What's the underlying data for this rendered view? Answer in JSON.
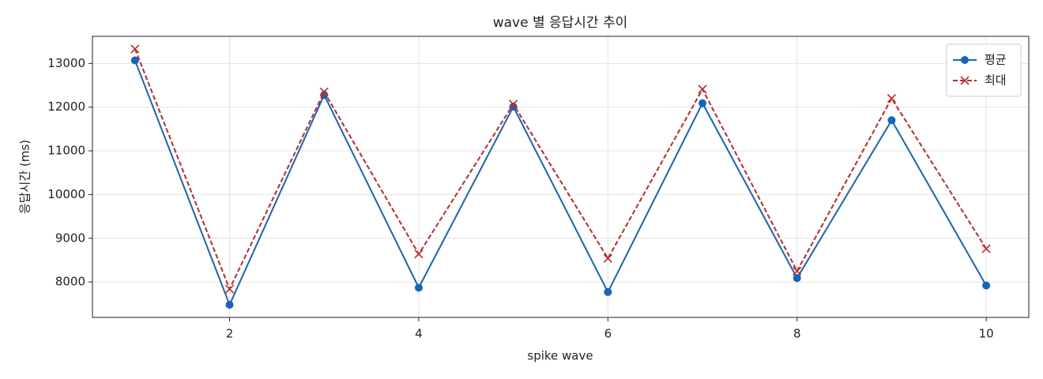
{
  "chart_data": {
    "type": "line",
    "title": "wave 별 응답시간 추이",
    "x_label": "spike wave",
    "y_label": "응답시간 (ms)",
    "x": [
      1,
      2,
      3,
      4,
      5,
      6,
      7,
      8,
      9,
      10
    ],
    "series": [
      {
        "name": "평균",
        "color": "#1565c0",
        "marker": "o",
        "linestyle": "solid",
        "values": [
          13070,
          7480,
          12280,
          7870,
          12010,
          7770,
          12090,
          8090,
          11700,
          7920
        ]
      },
      {
        "name": "최대",
        "color": "#c62828",
        "marker": "x",
        "linestyle": "dashed",
        "values": [
          13330,
          7840,
          12350,
          8640,
          12070,
          8540,
          12410,
          8250,
          12200,
          8760
        ]
      }
    ],
    "xlim": [
      0.55,
      10.45
    ],
    "xticks": [
      2,
      4,
      6,
      8,
      10
    ],
    "ylim": [
      7190,
      13620
    ],
    "yticks": [
      8000,
      9000,
      10000,
      11000,
      12000,
      13000
    ],
    "grid": true,
    "legend": "upper right"
  }
}
